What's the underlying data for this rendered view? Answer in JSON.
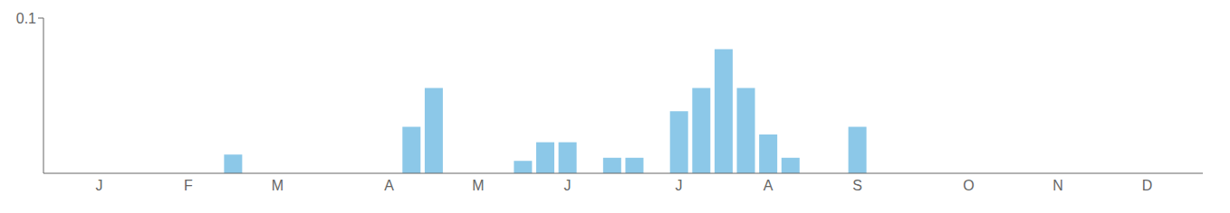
{
  "chart_data": {
    "type": "bar",
    "categories": [
      null,
      null,
      "J",
      null,
      null,
      null,
      "F",
      null,
      null,
      null,
      "M",
      null,
      null,
      null,
      null,
      "A",
      null,
      null,
      null,
      "M",
      null,
      null,
      null,
      "J",
      null,
      null,
      null,
      null,
      "J",
      null,
      null,
      null,
      "A",
      null,
      null,
      null,
      "S",
      null,
      null,
      null,
      null,
      "O",
      null,
      null,
      null,
      "N",
      null,
      null,
      null,
      "D",
      null,
      null
    ],
    "values": [
      0.0,
      0.0,
      0.0,
      0.0,
      0.0,
      0.0,
      0.0,
      0.0,
      0.012,
      0.0,
      0.0,
      0.0,
      0.0,
      0.0,
      0.0,
      0.0,
      0.03,
      0.055,
      0.0,
      0.0,
      0.0,
      0.008,
      0.02,
      0.02,
      0.0,
      0.01,
      0.01,
      0.0,
      0.04,
      0.055,
      0.08,
      0.055,
      0.025,
      0.01,
      0.0,
      0.0,
      0.03,
      0.0,
      0.0,
      0.0,
      0.0,
      0.0,
      0.0,
      0.0,
      0.0,
      0.0,
      0.0,
      0.0,
      0.0,
      0.0,
      0.0,
      0.0
    ],
    "color": "#8cc8e8",
    "ylim": [
      0,
      0.1
    ],
    "yticks": [
      0.1
    ]
  }
}
